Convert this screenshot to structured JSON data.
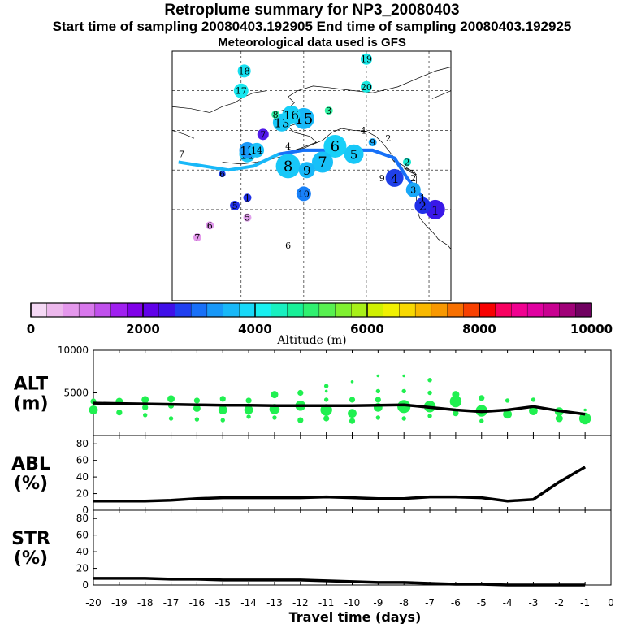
{
  "header": {
    "title": "Retroplume summary for NP3_20080403",
    "sampling": "Start time of sampling 20080403.192905     End time of sampling 20080403.192925",
    "met": "Meteorological data used is GFS"
  },
  "colorbar": {
    "label": "Altitude (m)",
    "ticks": [
      "0",
      "2000",
      "4000",
      "6000",
      "8000",
      "10000"
    ],
    "colors": [
      "#f4d8f4",
      "#ecb8ec",
      "#e498ec",
      "#d878ec",
      "#c050ec",
      "#a020f0",
      "#8000e8",
      "#6000e8",
      "#4010e8",
      "#2040f0",
      "#1870f8",
      "#1898f8",
      "#18b8f8",
      "#18d8f8",
      "#18f0f0",
      "#18f0c0",
      "#18f098",
      "#30f070",
      "#58f050",
      "#80f030",
      "#a8f018",
      "#d0f000",
      "#f0f000",
      "#f8d800",
      "#f8b800",
      "#f89800",
      "#f87000",
      "#f84000",
      "#f80000",
      "#f80060",
      "#f00090",
      "#e000a0",
      "#c80090",
      "#a00078",
      "#700060"
    ]
  },
  "map_labels": [
    {
      "n": "1",
      "lon": -118,
      "lat": 40,
      "color": "#3a18e8",
      "size": 12
    },
    {
      "n": "2",
      "lon": -122,
      "lat": 41,
      "color": "#2030e8",
      "size": 10
    },
    {
      "n": "3",
      "lon": -125,
      "lat": 45,
      "color": "#18a8f8",
      "size": 9
    },
    {
      "n": "4",
      "lon": -131,
      "lat": 48,
      "color": "#2040e8",
      "size": 11
    },
    {
      "n": "5",
      "lon": -144,
      "lat": 54,
      "color": "#18c8f8",
      "size": 12
    },
    {
      "n": "6",
      "lon": -150,
      "lat": 56,
      "color": "#18d0f8",
      "size": 14
    },
    {
      "n": "7",
      "lon": -154,
      "lat": 52,
      "color": "#18c0f8",
      "size": 13
    },
    {
      "n": "8",
      "lon": -165,
      "lat": 51,
      "color": "#18c8f8",
      "size": 15
    },
    {
      "n": "9",
      "lon": -159,
      "lat": 50,
      "color": "#18b8f8",
      "size": 10
    },
    {
      "n": "10",
      "lon": -160,
      "lat": 44,
      "color": "#1880f8",
      "size": 9
    },
    {
      "n": "11",
      "lon": -178,
      "lat": 54,
      "color": "#18c8f8",
      "size": 10
    },
    {
      "n": "12",
      "lon": -178,
      "lat": 55,
      "color": "#1898f8",
      "size": 10
    },
    {
      "n": "13",
      "lon": -167,
      "lat": 62,
      "color": "#18c8f8",
      "size": 11
    },
    {
      "n": "14",
      "lon": -175,
      "lat": 55,
      "color": "#18c0f8",
      "size": 9
    },
    {
      "n": "15",
      "lon": -160,
      "lat": 63,
      "color": "#18b8f8",
      "size": 13
    },
    {
      "n": "16",
      "lon": -164,
      "lat": 64,
      "color": "#18d0f8",
      "size": 11
    },
    {
      "n": "17",
      "lon": -180,
      "lat": 70,
      "color": "#18e8f0",
      "size": 9
    },
    {
      "n": "18",
      "lon": -179,
      "lat": 75,
      "color": "#18e0f0",
      "size": 8
    },
    {
      "n": "19",
      "lon": -140,
      "lat": 78,
      "color": "#18e8e8",
      "size": 7
    },
    {
      "n": "20",
      "lon": -140,
      "lat": 71,
      "color": "#18e8e0",
      "size": 7
    },
    {
      "n": "1",
      "lon": -122,
      "lat": 43,
      "color": "#18d8f8",
      "size": 0
    },
    {
      "n": "2",
      "lon": -127,
      "lat": 52,
      "color": "#18e8d0",
      "size": 5
    },
    {
      "n": "2",
      "lon": -133,
      "lat": 58,
      "color": "#30f0a0",
      "size": 0
    },
    {
      "n": "2",
      "lon": -125,
      "lat": 48,
      "color": "#18d0f8",
      "size": 0
    },
    {
      "n": "3",
      "lon": -152,
      "lat": 65,
      "color": "#30f0a0",
      "size": 5
    },
    {
      "n": "4",
      "lon": -141,
      "lat": 60,
      "color": "#30f0a0",
      "size": 0
    },
    {
      "n": "8",
      "lon": -169,
      "lat": 64,
      "color": "#30f0a0",
      "size": 5
    },
    {
      "n": "9",
      "lon": -138,
      "lat": 57,
      "color": "#18a8f8",
      "size": 5
    },
    {
      "n": "9",
      "lon": -135,
      "lat": 48,
      "color": "#18c8f8",
      "size": 0
    },
    {
      "n": "5",
      "lon": -182,
      "lat": 41,
      "color": "#2030e8",
      "size": 6
    },
    {
      "n": "5",
      "lon": -178,
      "lat": 38,
      "color": "#e0a0ec",
      "size": 5
    },
    {
      "n": "6",
      "lon": -190,
      "lat": 36,
      "color": "#e098ec",
      "size": 5
    },
    {
      "n": "6",
      "lon": -165,
      "lat": 31,
      "color": "#e498ec",
      "size": 0
    },
    {
      "n": "6",
      "lon": -186,
      "lat": 49,
      "color": "#2040e8",
      "size": 4
    },
    {
      "n": "7",
      "lon": -194,
      "lat": 33,
      "color": "#e498ec",
      "size": 5
    },
    {
      "n": "7",
      "lon": -199,
      "lat": 54,
      "color": "#18c8f8",
      "size": 0
    },
    {
      "n": "4",
      "lon": -165,
      "lat": 56,
      "color": "#18c8f8",
      "size": 0
    },
    {
      "n": "1",
      "lon": -178,
      "lat": 43,
      "color": "#2030e8",
      "size": 5
    },
    {
      "n": "7",
      "lon": -173,
      "lat": 59,
      "color": "#5018e8",
      "size": 7
    }
  ],
  "map_track": {
    "lon": [
      -118,
      -122,
      -127,
      -131,
      -138,
      -145,
      -152,
      -160,
      -168,
      -176,
      -184,
      -192,
      -200
    ],
    "lat": [
      40,
      43,
      48,
      53,
      55,
      55,
      55,
      55,
      54,
      51,
      50,
      51,
      52
    ]
  },
  "chart_data": [
    {
      "type": "line",
      "name": "alt",
      "ylabel": "ALT\n(m)",
      "ylim": [
        0,
        10000
      ],
      "yticks": [
        5000,
        10000
      ],
      "x": [
        -20,
        -19,
        -18,
        -17,
        -16,
        -15,
        -14,
        -13,
        -12,
        -11,
        -10,
        -9,
        -8,
        -7,
        -6,
        -5,
        -4,
        -3,
        -2,
        -1
      ],
      "values": [
        3800,
        3750,
        3700,
        3650,
        3600,
        3550,
        3550,
        3500,
        3500,
        3500,
        3500,
        3550,
        3600,
        3300,
        3000,
        2800,
        3000,
        3400,
        2900,
        2500
      ],
      "dots": [
        {
          "x": -20,
          "y": 4000,
          "s": 4
        },
        {
          "x": -20,
          "y": 3000,
          "s": 6
        },
        {
          "x": -19,
          "y": 4000,
          "s": 5
        },
        {
          "x": -19,
          "y": 2700,
          "s": 4
        },
        {
          "x": -18,
          "y": 4200,
          "s": 5
        },
        {
          "x": -18,
          "y": 3300,
          "s": 4
        },
        {
          "x": -18,
          "y": 2400,
          "s": 3
        },
        {
          "x": -17,
          "y": 4300,
          "s": 5
        },
        {
          "x": -17,
          "y": 3500,
          "s": 4
        },
        {
          "x": -17,
          "y": 2000,
          "s": 3
        },
        {
          "x": -16,
          "y": 4100,
          "s": 4
        },
        {
          "x": -16,
          "y": 3200,
          "s": 5
        },
        {
          "x": -16,
          "y": 1900,
          "s": 3
        },
        {
          "x": -15,
          "y": 4300,
          "s": 4
        },
        {
          "x": -15,
          "y": 3000,
          "s": 6
        },
        {
          "x": -15,
          "y": 1800,
          "s": 3
        },
        {
          "x": -14,
          "y": 4100,
          "s": 4
        },
        {
          "x": -14,
          "y": 3000,
          "s": 6
        },
        {
          "x": -14,
          "y": 2200,
          "s": 3
        },
        {
          "x": -13,
          "y": 4800,
          "s": 5
        },
        {
          "x": -13,
          "y": 3100,
          "s": 7
        },
        {
          "x": -13,
          "y": 2100,
          "s": 3
        },
        {
          "x": -12,
          "y": 5000,
          "s": 4
        },
        {
          "x": -12,
          "y": 3500,
          "s": 7
        },
        {
          "x": -12,
          "y": 1800,
          "s": 4
        },
        {
          "x": -11,
          "y": 5800,
          "s": 3
        },
        {
          "x": -11,
          "y": 5200,
          "s": 2
        },
        {
          "x": -11,
          "y": 4200,
          "s": 3
        },
        {
          "x": -11,
          "y": 3000,
          "s": 8
        },
        {
          "x": -11,
          "y": 2000,
          "s": 4
        },
        {
          "x": -10,
          "y": 6300,
          "s": 2
        },
        {
          "x": -10,
          "y": 4200,
          "s": 4
        },
        {
          "x": -10,
          "y": 2600,
          "s": 6
        },
        {
          "x": -10,
          "y": 1700,
          "s": 4
        },
        {
          "x": -9,
          "y": 7000,
          "s": 2
        },
        {
          "x": -9,
          "y": 5200,
          "s": 3
        },
        {
          "x": -9,
          "y": 4200,
          "s": 4
        },
        {
          "x": -9,
          "y": 3300,
          "s": 6
        },
        {
          "x": -9,
          "y": 2100,
          "s": 3
        },
        {
          "x": -8,
          "y": 7000,
          "s": 2
        },
        {
          "x": -8,
          "y": 5200,
          "s": 3
        },
        {
          "x": -8,
          "y": 3400,
          "s": 9
        },
        {
          "x": -8,
          "y": 2000,
          "s": 3
        },
        {
          "x": -7,
          "y": 6500,
          "s": 3
        },
        {
          "x": -7,
          "y": 5000,
          "s": 3
        },
        {
          "x": -7,
          "y": 3400,
          "s": 8
        },
        {
          "x": -7,
          "y": 2300,
          "s": 3
        },
        {
          "x": -6,
          "y": 4800,
          "s": 5
        },
        {
          "x": -6,
          "y": 4000,
          "s": 8
        },
        {
          "x": -6,
          "y": 2600,
          "s": 4
        },
        {
          "x": -5,
          "y": 4400,
          "s": 4
        },
        {
          "x": -5,
          "y": 2900,
          "s": 8
        },
        {
          "x": -5,
          "y": 1700,
          "s": 3
        },
        {
          "x": -4,
          "y": 4100,
          "s": 3
        },
        {
          "x": -4,
          "y": 2500,
          "s": 6
        },
        {
          "x": -3,
          "y": 4200,
          "s": 3
        },
        {
          "x": -3,
          "y": 2900,
          "s": 6
        },
        {
          "x": -2,
          "y": 2800,
          "s": 6
        },
        {
          "x": -2,
          "y": 2000,
          "s": 5
        },
        {
          "x": -1,
          "y": 3000,
          "s": 2
        },
        {
          "x": -1,
          "y": 2000,
          "s": 8
        }
      ]
    },
    {
      "type": "line",
      "name": "abl",
      "ylabel": "ABL\n(%)",
      "ylim": [
        0,
        90
      ],
      "yticks": [
        0,
        20,
        40,
        60,
        80
      ],
      "x": [
        -20,
        -19,
        -18,
        -17,
        -16,
        -15,
        -14,
        -13,
        -12,
        -11,
        -10,
        -9,
        -8,
        -7,
        -6,
        -5,
        -4,
        -3,
        -2,
        -1
      ],
      "values": [
        11,
        11,
        11,
        12,
        14,
        15,
        15,
        15,
        15,
        16,
        15,
        14,
        14,
        16,
        16,
        15,
        11,
        13,
        34,
        52
      ]
    },
    {
      "type": "line",
      "name": "str",
      "ylabel": "STR\n(%)",
      "ylim": [
        0,
        90
      ],
      "yticks": [
        0,
        20,
        40,
        60,
        80
      ],
      "x": [
        -20,
        -19,
        -18,
        -17,
        -16,
        -15,
        -14,
        -13,
        -12,
        -11,
        -10,
        -9,
        -8,
        -7,
        -6,
        -5,
        -4,
        -3,
        -2,
        -1
      ],
      "values": [
        8,
        8,
        8,
        7,
        7,
        6,
        6,
        6,
        6,
        5,
        4,
        3,
        3,
        2,
        1,
        1,
        0,
        0,
        0,
        0
      ]
    }
  ],
  "xaxis": {
    "ticks": [
      "-20",
      "-19",
      "-18",
      "-17",
      "-16",
      "-15",
      "-14",
      "-13",
      "-12",
      "-11",
      "-10",
      "-9",
      "-8",
      "-7",
      "-6",
      "-5",
      "-4",
      "-3",
      "-2",
      "-1",
      "0"
    ],
    "label": "Travel time (days)"
  }
}
